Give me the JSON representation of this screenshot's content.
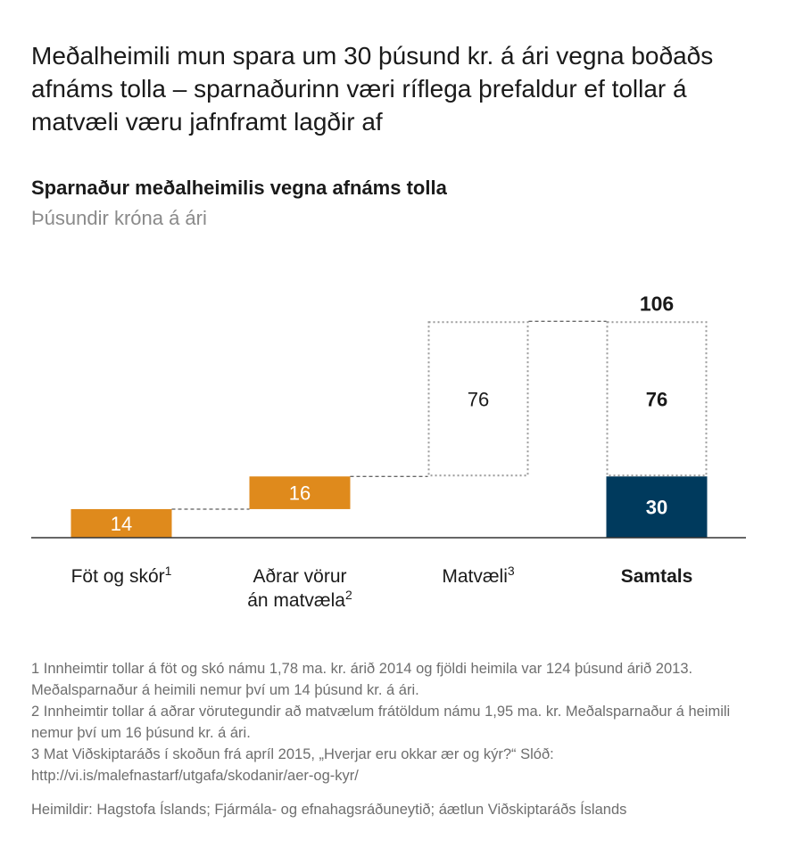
{
  "headline": "Meðalheimili mun spara um 30 þúsund kr. á ári vegna boðaðs afnáms tolla – sparnaðurinn væri ríflega þrefaldur ef tollar á matvæli væru jafnframt lagðir af",
  "colors": {
    "orange": "#df8a1c",
    "navy": "#003a5d",
    "dotted": "#9a9a9a",
    "axis": "#333333"
  },
  "chart_data": {
    "type": "bar",
    "subtype": "waterfall",
    "title": "Sparnaður meðalheimilis vegna afnáms tolla",
    "subtitle": "Þúsundir króna á ári",
    "ylim": [
      0,
      120
    ],
    "steps": [
      {
        "label_lines": [
          "Föt og skór"
        ],
        "sup": "1",
        "start": 0,
        "value": 14,
        "label": "14",
        "style": "orange"
      },
      {
        "label_lines": [
          "Aðrar vörur",
          "án matvæla"
        ],
        "sup": "2",
        "start": 14,
        "value": 16,
        "label": "16",
        "style": "orange"
      },
      {
        "label_lines": [
          "Matvæli"
        ],
        "sup": "3",
        "start": 30,
        "value": 76,
        "label": "76",
        "style": "dotted"
      }
    ],
    "total": {
      "label": "Samtals",
      "segments": [
        {
          "value": 30,
          "label": "30",
          "style": "navy"
        },
        {
          "value": 76,
          "label": "76",
          "style": "dotted"
        }
      ],
      "sum_label": "106"
    }
  },
  "footnotes": [
    "1 Innheimtir tollar á föt og skó námu 1,78 ma. kr. árið 2014 og fjöldi heimila var 124 þúsund árið 2013. Meðalsparnaður á heimili nemur því um 14 þúsund kr. á ári.",
    "2 Innheimtir tollar á aðrar vörutegundir að matvælum frátöldum námu 1,95 ma. kr. Meðalsparnaður á heimili nemur því um 16 þúsund kr. á ári.",
    "3 Mat Viðskiptaráðs í skoðun frá apríl 2015, „Hverjar eru okkar ær og kýr?“ Slóð: http://vi.is/malefnastarf/utgafa/skodanir/aer-og-kyr/"
  ],
  "source": "Heimildir: Hagstofa Íslands; Fjármála- og efnahagsráðuneytið; áætlun Viðskiptaráðs Íslands"
}
